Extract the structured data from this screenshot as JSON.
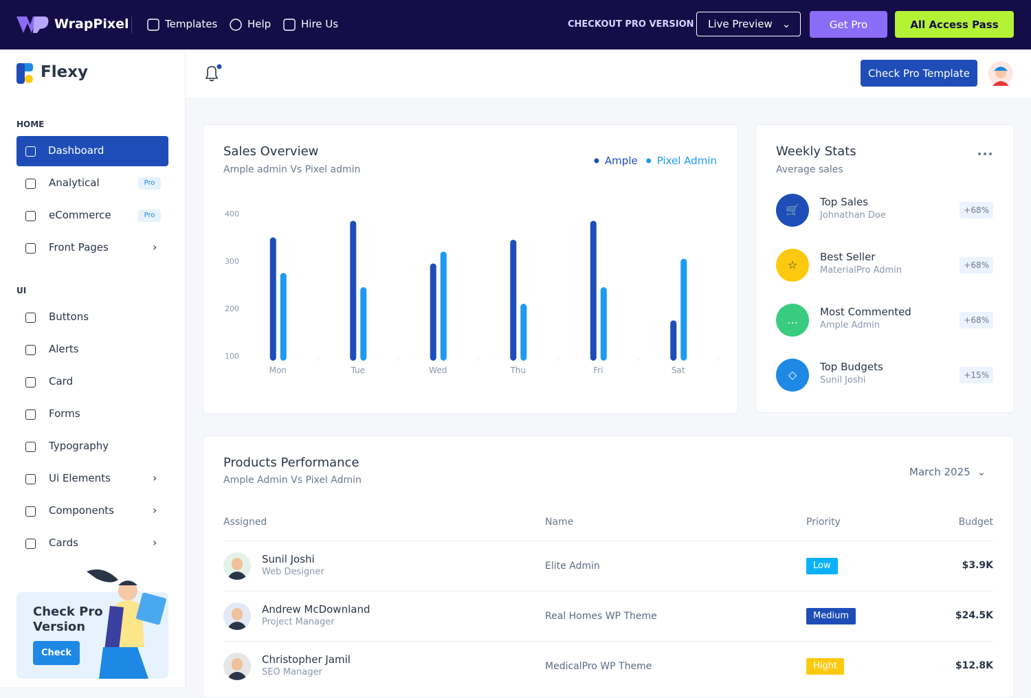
{
  "topbar": {
    "brand": "WrapPixel",
    "links": [
      "Templates",
      "Help",
      "Hire Us"
    ],
    "checkout": "CHECKOUT PRO VERSION",
    "live_preview": "Live Preview",
    "get_pro": "Get Pro",
    "all_access": "All Access Pass"
  },
  "sidebar": {
    "logo": "Flexy",
    "sections": [
      {
        "title": "HOME",
        "items": [
          {
            "label": "Dashboard"
          },
          {
            "label": "Analytical",
            "badge": "Pro"
          },
          {
            "label": "eCommerce",
            "badge": "Pro"
          },
          {
            "label": "Front Pages"
          }
        ]
      },
      {
        "title": "UI",
        "items": [
          {
            "label": "Buttons"
          },
          {
            "label": "Alerts"
          },
          {
            "label": "Card"
          },
          {
            "label": "Forms"
          },
          {
            "label": "Typography"
          },
          {
            "label": "Ui Elements"
          },
          {
            "label": "Components"
          },
          {
            "label": "Cards"
          }
        ]
      }
    ],
    "promo": {
      "title": "Check Pro Version",
      "button": "Check"
    }
  },
  "header": {
    "button": "Check Pro Template"
  },
  "chart_data": {
    "type": "bar",
    "title": "Sales Overview",
    "subtitle": "Ample admin Vs Pixel admin",
    "categories": [
      "Mon",
      "Tue",
      "Wed",
      "Thu",
      "Fri",
      "Sat"
    ],
    "series": [
      {
        "name": "Ample",
        "color": "#1e4db7",
        "values": [
          350,
          385,
          295,
          345,
          385,
          175
        ]
      },
      {
        "name": "Pixel Admin",
        "color": "#1e9bf0",
        "values": [
          275,
          245,
          320,
          210,
          245,
          305
        ]
      }
    ],
    "ylim": [
      90,
      400
    ],
    "yticks": [
      100,
      200,
      300,
      400
    ],
    "grid": false,
    "legend": "top-right"
  },
  "weekly_stats": {
    "title": "Weekly Stats",
    "subtitle": "Average sales",
    "items": [
      {
        "title": "Top Sales",
        "subtitle": "Johnathan Doe",
        "change": "+68%"
      },
      {
        "title": "Best Seller",
        "subtitle": "MaterialPro Admin",
        "change": "+68%"
      },
      {
        "title": "Most Commented",
        "subtitle": "Ample Admin",
        "change": "+68%"
      },
      {
        "title": "Top Budgets",
        "subtitle": "Sunil Joshi",
        "change": "+15%"
      }
    ]
  },
  "products": {
    "title": "Products Performance",
    "subtitle": "Ample Admin Vs Pixel Admin",
    "filter": "March 2025",
    "columns": [
      "Assigned",
      "Name",
      "Priority",
      "Budget"
    ],
    "rows": [
      {
        "name": "Sunil Joshi",
        "role": "Web Designer",
        "project": "Elite Admin",
        "priority": "Low",
        "budget": "$3.9K"
      },
      {
        "name": "Andrew McDownland",
        "role": "Project Manager",
        "project": "Real Homes WP Theme",
        "priority": "Medium",
        "budget": "$24.5K"
      },
      {
        "name": "Christopher Jamil",
        "role": "SEO Manager",
        "project": "MedicalPro WP Theme",
        "priority": "Hight",
        "budget": "$12.8K"
      }
    ]
  }
}
